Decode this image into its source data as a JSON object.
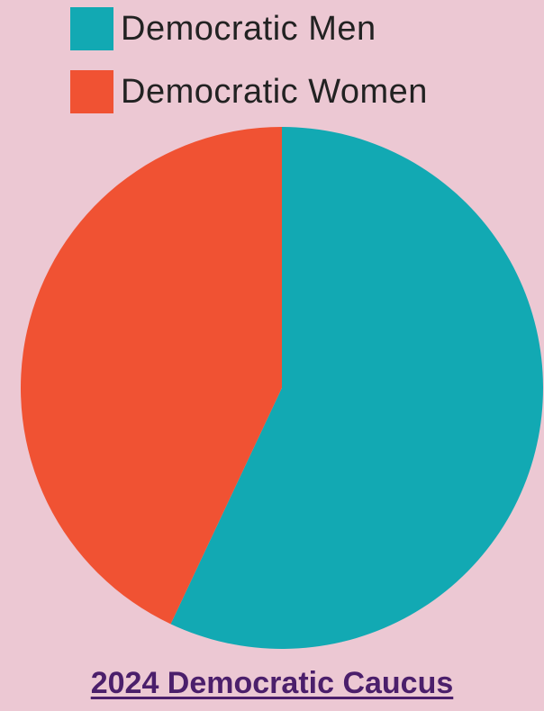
{
  "chart_data": {
    "type": "pie",
    "title": "2024 Democratic Caucus",
    "legend_position": "top-left",
    "slices": [
      {
        "label": "Democratic Men",
        "value": 57,
        "color": "#12a9b3"
      },
      {
        "label": "Democratic Women",
        "value": 43,
        "color": "#f05233"
      }
    ]
  },
  "colors": {
    "background": "#ecc8d3",
    "title": "#4b1f6b"
  }
}
